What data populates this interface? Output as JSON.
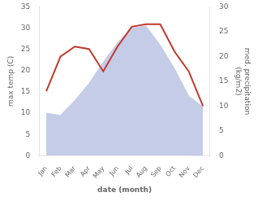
{
  "chart_data": {
    "type": "line",
    "categories": [
      "Jan",
      "Feb",
      "Mar",
      "Apr",
      "May",
      "Jun",
      "Jul",
      "Aug",
      "Sep",
      "Oct",
      "Nov",
      "Dec"
    ],
    "series": [
      {
        "type": "area",
        "color": "#c5cce8",
        "values": [
          10.0,
          9.5,
          13.0,
          17.0,
          22.0,
          26.5,
          30.0,
          30.5,
          26.0,
          20.5,
          14.0,
          11.5
        ]
      },
      {
        "type": "line",
        "color": "#c0392b",
        "axis": "y2",
        "values": [
          13.0,
          20.0,
          22.0,
          21.5,
          17.0,
          22.0,
          26.0,
          26.5,
          26.5,
          21.0,
          17.0,
          10.0
        ]
      }
    ],
    "xlabel": "date (month)",
    "ylabel": "max temp (C)",
    "y2label": "med. precipitation\n(kg/m2)",
    "ylim": [
      0,
      35
    ],
    "yticks": [
      0,
      5,
      10,
      15,
      20,
      25,
      30,
      35
    ],
    "y2lim": [
      0,
      30
    ],
    "y2ticks": [
      0,
      5,
      10,
      15,
      20,
      25,
      30
    ],
    "grid": false
  }
}
